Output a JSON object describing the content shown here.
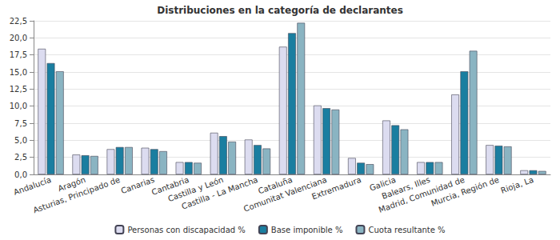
{
  "chart_data": {
    "type": "bar",
    "title": "Distribuciones en la categoría de declarantes",
    "categories": [
      "Andalucía",
      "Aragón",
      "Asturias, Principado de",
      "Canarias",
      "Cantabria",
      "Castilla y León",
      "Castilla - La Mancha",
      "Cataluña",
      "Comunitat Valenciana",
      "Extremadura",
      "Galicia",
      "Balears, Illes",
      "Madrid, Comunidad de",
      "Murcia, Región de",
      "Rioja, La"
    ],
    "series": [
      {
        "name": "Personas con discapacidad %",
        "color": "#dcdcf0",
        "values": [
          18.4,
          2.9,
          3.7,
          3.9,
          1.8,
          6.1,
          5.1,
          18.7,
          10.1,
          2.4,
          7.9,
          1.8,
          11.7,
          4.3,
          0.6
        ]
      },
      {
        "name": "Base imponible %",
        "color": "#1a7ea0",
        "values": [
          16.3,
          2.8,
          4.0,
          3.7,
          1.8,
          5.6,
          4.3,
          20.7,
          9.7,
          1.7,
          7.2,
          1.8,
          15.1,
          4.2,
          0.6
        ]
      },
      {
        "name": "Cuota resultante %",
        "color": "#8ab4c2",
        "values": [
          15.1,
          2.7,
          4.0,
          3.4,
          1.7,
          4.8,
          3.8,
          22.2,
          9.5,
          1.5,
          6.6,
          1.8,
          18.1,
          4.1,
          0.5
        ]
      }
    ],
    "ylim": [
      0,
      22.5
    ],
    "yticks": [
      {
        "value": 0,
        "label": "0,0"
      },
      {
        "value": 2.5,
        "label": "2,5"
      },
      {
        "value": 5,
        "label": "5,0"
      },
      {
        "value": 7.5,
        "label": "7,5"
      },
      {
        "value": 10,
        "label": "10,0"
      },
      {
        "value": 12.5,
        "label": "12,5"
      },
      {
        "value": 15,
        "label": "15,0"
      },
      {
        "value": 17.5,
        "label": "17,5"
      },
      {
        "value": 20,
        "label": "20,0"
      },
      {
        "value": 22.5,
        "label": "22,5"
      }
    ],
    "grid": true,
    "legend": "bottom"
  }
}
